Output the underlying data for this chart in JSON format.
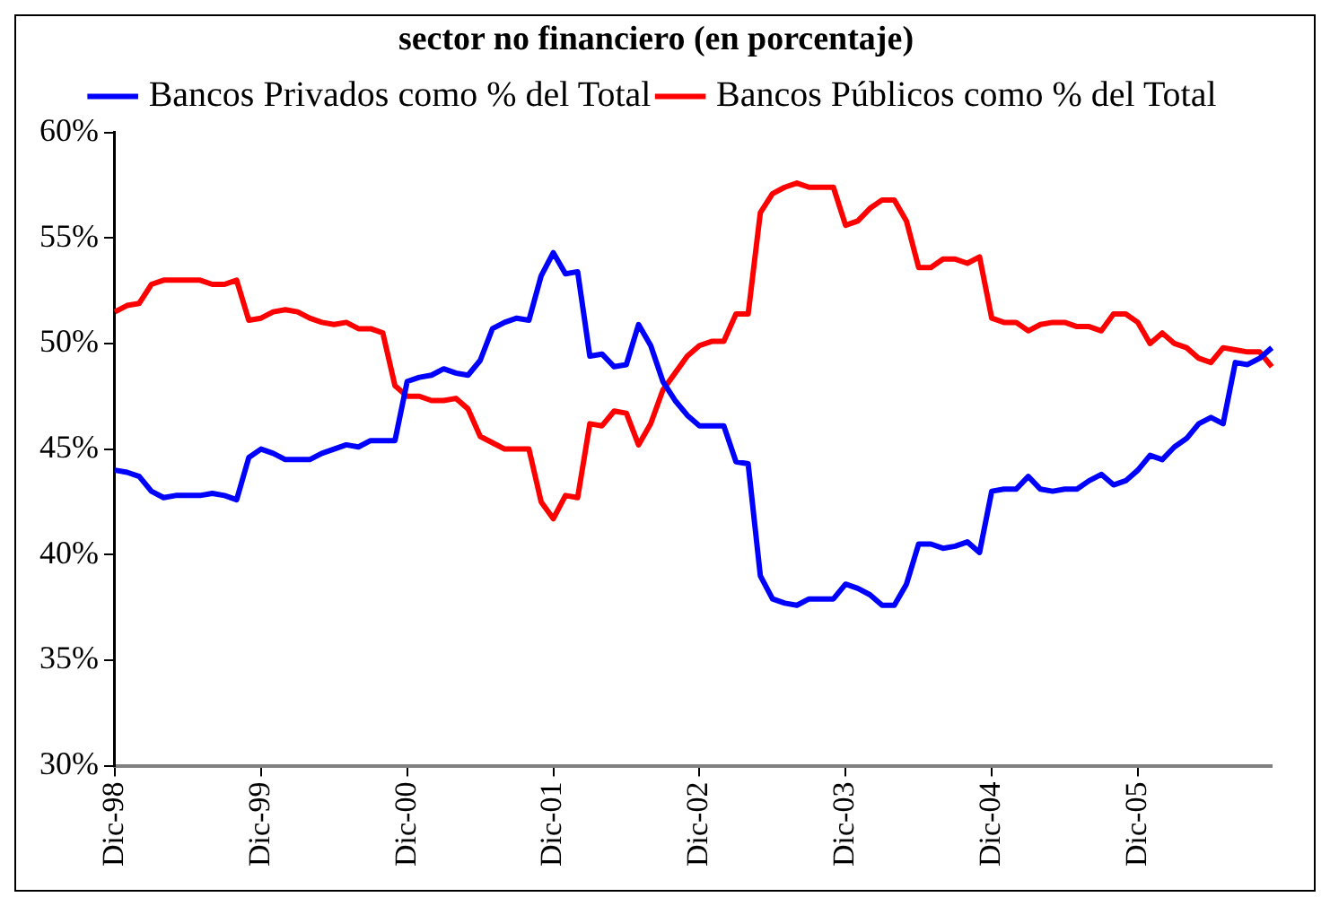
{
  "chart_data": {
    "type": "line",
    "title": "sector no financiero (en porcentaje)",
    "categories": [
      "Dic-98",
      null,
      null,
      null,
      null,
      null,
      null,
      null,
      null,
      null,
      null,
      null,
      "Dic-99",
      null,
      null,
      null,
      null,
      null,
      null,
      null,
      null,
      null,
      null,
      null,
      "Dic-00",
      null,
      null,
      null,
      null,
      null,
      null,
      null,
      null,
      null,
      null,
      null,
      "Dic-01",
      null,
      null,
      null,
      null,
      null,
      null,
      null,
      null,
      null,
      null,
      null,
      "Dic-02",
      null,
      null,
      null,
      null,
      null,
      null,
      null,
      null,
      null,
      null,
      null,
      "Dic-03",
      null,
      null,
      null,
      null,
      null,
      null,
      null,
      null,
      null,
      null,
      null,
      "Dic-04",
      null,
      null,
      null,
      null,
      null,
      null,
      null,
      null,
      null,
      null,
      null,
      "Dic-05",
      null,
      null,
      null,
      null,
      null,
      null,
      null,
      null,
      null,
      null,
      null
    ],
    "series": [
      {
        "name": "Bancos Privados como % del Total",
        "color": "#0000ff",
        "values": [
          44.0,
          43.9,
          43.7,
          43.0,
          42.7,
          42.8,
          42.8,
          42.8,
          42.9,
          42.8,
          42.6,
          44.6,
          45.0,
          44.8,
          44.5,
          44.5,
          44.5,
          44.8,
          45.0,
          45.2,
          45.1,
          45.4,
          45.4,
          45.4,
          48.2,
          48.4,
          48.5,
          48.8,
          48.6,
          48.5,
          49.2,
          50.7,
          51.0,
          51.2,
          51.1,
          53.2,
          54.3,
          53.3,
          53.4,
          49.4,
          49.5,
          48.9,
          49.0,
          50.9,
          49.9,
          48.2,
          47.3,
          46.6,
          46.1,
          46.1,
          46.1,
          44.4,
          44.3,
          39.0,
          37.9,
          37.7,
          37.6,
          37.9,
          37.9,
          37.9,
          38.6,
          38.4,
          38.1,
          37.6,
          37.6,
          38.6,
          40.5,
          40.5,
          40.3,
          40.4,
          40.6,
          40.1,
          43.0,
          43.1,
          43.1,
          43.7,
          43.1,
          43.0,
          43.1,
          43.1,
          43.5,
          43.8,
          43.3,
          43.5,
          44.0,
          44.7,
          44.5,
          45.1,
          45.5,
          46.2,
          46.5,
          46.2,
          49.1,
          49.0,
          49.3,
          49.8
        ]
      },
      {
        "name": "Bancos Públicos como % del Total",
        "color": "#ff0000",
        "values": [
          51.5,
          51.8,
          51.9,
          52.8,
          53.0,
          53.0,
          53.0,
          53.0,
          52.8,
          52.8,
          53.0,
          51.1,
          51.2,
          51.5,
          51.6,
          51.5,
          51.2,
          51.0,
          50.9,
          51.0,
          50.7,
          50.7,
          50.5,
          48.0,
          47.5,
          47.5,
          47.3,
          47.3,
          47.4,
          46.9,
          45.6,
          45.3,
          45.0,
          45.0,
          45.0,
          42.5,
          41.7,
          42.8,
          42.7,
          46.2,
          46.1,
          46.8,
          46.7,
          45.2,
          46.2,
          47.8,
          48.6,
          49.4,
          49.9,
          50.1,
          50.1,
          51.4,
          51.4,
          56.2,
          57.1,
          57.4,
          57.6,
          57.4,
          57.4,
          57.4,
          55.6,
          55.8,
          56.4,
          56.8,
          56.8,
          55.8,
          53.6,
          53.6,
          54.0,
          54.0,
          53.8,
          54.1,
          51.2,
          51.0,
          51.0,
          50.6,
          50.9,
          51.0,
          51.0,
          50.8,
          50.8,
          50.6,
          51.4,
          51.4,
          51.0,
          50.0,
          50.5,
          50.0,
          49.8,
          49.3,
          49.1,
          49.8,
          49.7,
          49.6,
          49.6,
          48.9
        ]
      }
    ],
    "ylim": [
      30,
      60
    ],
    "yticks": [
      {
        "value": 30,
        "label": "30%"
      },
      {
        "value": 35,
        "label": "35%"
      },
      {
        "value": 40,
        "label": "40%"
      },
      {
        "value": 45,
        "label": "45%"
      },
      {
        "value": 50,
        "label": "50%"
      },
      {
        "value": 55,
        "label": "55%"
      },
      {
        "value": 60,
        "label": "60%"
      }
    ],
    "legend": "top",
    "marker": "none",
    "line_style": "solid"
  }
}
